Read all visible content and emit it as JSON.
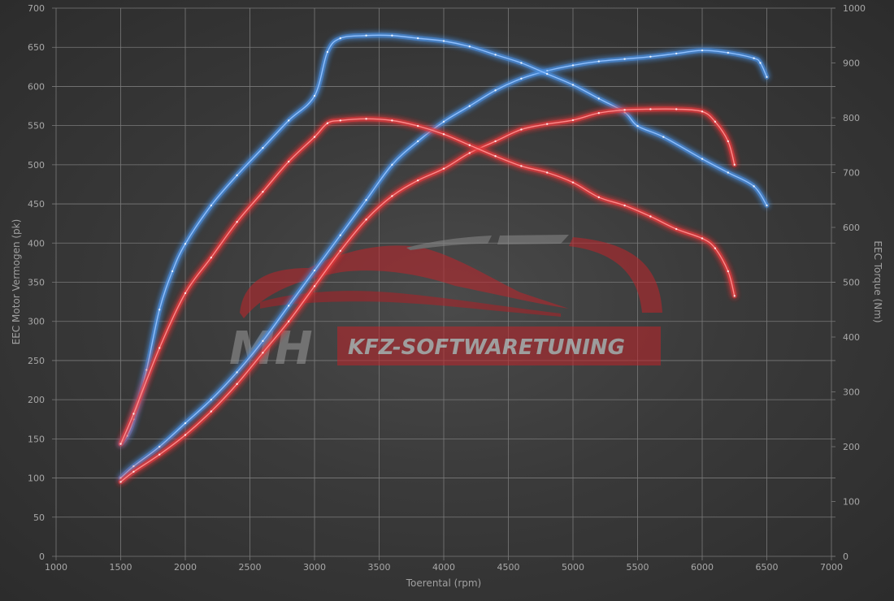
{
  "chart_data": {
    "type": "line",
    "xlabel": "Toerental (rpm)",
    "ylabel_left": "EEC Motor Vermogen (pk)",
    "ylabel_right": "EEC Torque (Nm)",
    "xlim": [
      1000,
      7000
    ],
    "ylim_left": [
      0,
      700
    ],
    "ylim_right": [
      0,
      1000
    ],
    "x_ticks": [
      1000,
      1500,
      2000,
      2500,
      3000,
      3500,
      4000,
      4500,
      5000,
      5500,
      6000,
      6500,
      7000
    ],
    "y_ticks_left": [
      0,
      50,
      100,
      150,
      200,
      250,
      300,
      350,
      400,
      450,
      500,
      550,
      600,
      650,
      700
    ],
    "y_ticks_right": [
      0,
      100,
      200,
      300,
      400,
      500,
      600,
      700,
      800,
      900,
      1000
    ],
    "grid": true,
    "legend": "none",
    "series": [
      {
        "color": "#4a90e2",
        "axis": "left",
        "points": [
          [
            1500,
            100
          ],
          [
            1600,
            115
          ],
          [
            1800,
            140
          ],
          [
            2000,
            170
          ],
          [
            2200,
            200
          ],
          [
            2400,
            235
          ],
          [
            2600,
            275
          ],
          [
            2800,
            320
          ],
          [
            3000,
            365
          ],
          [
            3200,
            410
          ],
          [
            3400,
            455
          ],
          [
            3600,
            500
          ],
          [
            3800,
            530
          ],
          [
            4000,
            555
          ],
          [
            4200,
            575
          ],
          [
            4400,
            595
          ],
          [
            4600,
            610
          ],
          [
            4800,
            620
          ],
          [
            5000,
            627
          ],
          [
            5200,
            632
          ],
          [
            5400,
            635
          ],
          [
            5600,
            638
          ],
          [
            5800,
            642
          ],
          [
            6000,
            646
          ],
          [
            6200,
            643
          ],
          [
            6400,
            636
          ],
          [
            6450,
            630
          ],
          [
            6500,
            612
          ]
        ]
      },
      {
        "color": "#4a90e2",
        "axis": "right",
        "points": [
          [
            1500,
            205
          ],
          [
            1550,
            220
          ],
          [
            1600,
            250
          ],
          [
            1700,
            340
          ],
          [
            1800,
            450
          ],
          [
            1900,
            520
          ],
          [
            2000,
            570
          ],
          [
            2200,
            640
          ],
          [
            2400,
            695
          ],
          [
            2600,
            745
          ],
          [
            2800,
            795
          ],
          [
            3000,
            840
          ],
          [
            3100,
            920
          ],
          [
            3200,
            945
          ],
          [
            3400,
            950
          ],
          [
            3600,
            950
          ],
          [
            3800,
            945
          ],
          [
            4000,
            940
          ],
          [
            4200,
            930
          ],
          [
            4400,
            915
          ],
          [
            4600,
            900
          ],
          [
            4800,
            880
          ],
          [
            5000,
            860
          ],
          [
            5200,
            835
          ],
          [
            5400,
            810
          ],
          [
            5500,
            785
          ],
          [
            5700,
            765
          ],
          [
            6000,
            725
          ],
          [
            6200,
            700
          ],
          [
            6400,
            675
          ],
          [
            6500,
            640
          ]
        ]
      },
      {
        "color": "#e8383d",
        "axis": "left",
        "points": [
          [
            1500,
            95
          ],
          [
            1600,
            108
          ],
          [
            1800,
            130
          ],
          [
            2000,
            155
          ],
          [
            2200,
            185
          ],
          [
            2400,
            220
          ],
          [
            2600,
            260
          ],
          [
            2800,
            300
          ],
          [
            3000,
            345
          ],
          [
            3200,
            390
          ],
          [
            3400,
            430
          ],
          [
            3600,
            460
          ],
          [
            3800,
            480
          ],
          [
            4000,
            495
          ],
          [
            4200,
            515
          ],
          [
            4400,
            530
          ],
          [
            4600,
            545
          ],
          [
            4800,
            552
          ],
          [
            5000,
            557
          ],
          [
            5200,
            566
          ],
          [
            5400,
            570
          ],
          [
            5600,
            571
          ],
          [
            5800,
            571
          ],
          [
            6000,
            568
          ],
          [
            6100,
            555
          ],
          [
            6200,
            530
          ],
          [
            6250,
            500
          ]
        ]
      },
      {
        "color": "#e8383d",
        "axis": "right",
        "points": [
          [
            1500,
            205
          ],
          [
            1600,
            260
          ],
          [
            1800,
            380
          ],
          [
            2000,
            480
          ],
          [
            2200,
            545
          ],
          [
            2400,
            610
          ],
          [
            2600,
            665
          ],
          [
            2800,
            720
          ],
          [
            3000,
            765
          ],
          [
            3100,
            790
          ],
          [
            3200,
            795
          ],
          [
            3400,
            798
          ],
          [
            3600,
            795
          ],
          [
            3800,
            785
          ],
          [
            4000,
            770
          ],
          [
            4200,
            750
          ],
          [
            4400,
            730
          ],
          [
            4600,
            712
          ],
          [
            4800,
            700
          ],
          [
            5000,
            682
          ],
          [
            5200,
            655
          ],
          [
            5400,
            640
          ],
          [
            5600,
            620
          ],
          [
            5800,
            597
          ],
          [
            6000,
            580
          ],
          [
            6100,
            562
          ],
          [
            6200,
            520
          ],
          [
            6250,
            475
          ]
        ]
      }
    ]
  },
  "watermark": {
    "brand_initials": "MH",
    "brand_text": "KFZ-SOFTWARETUNING"
  }
}
